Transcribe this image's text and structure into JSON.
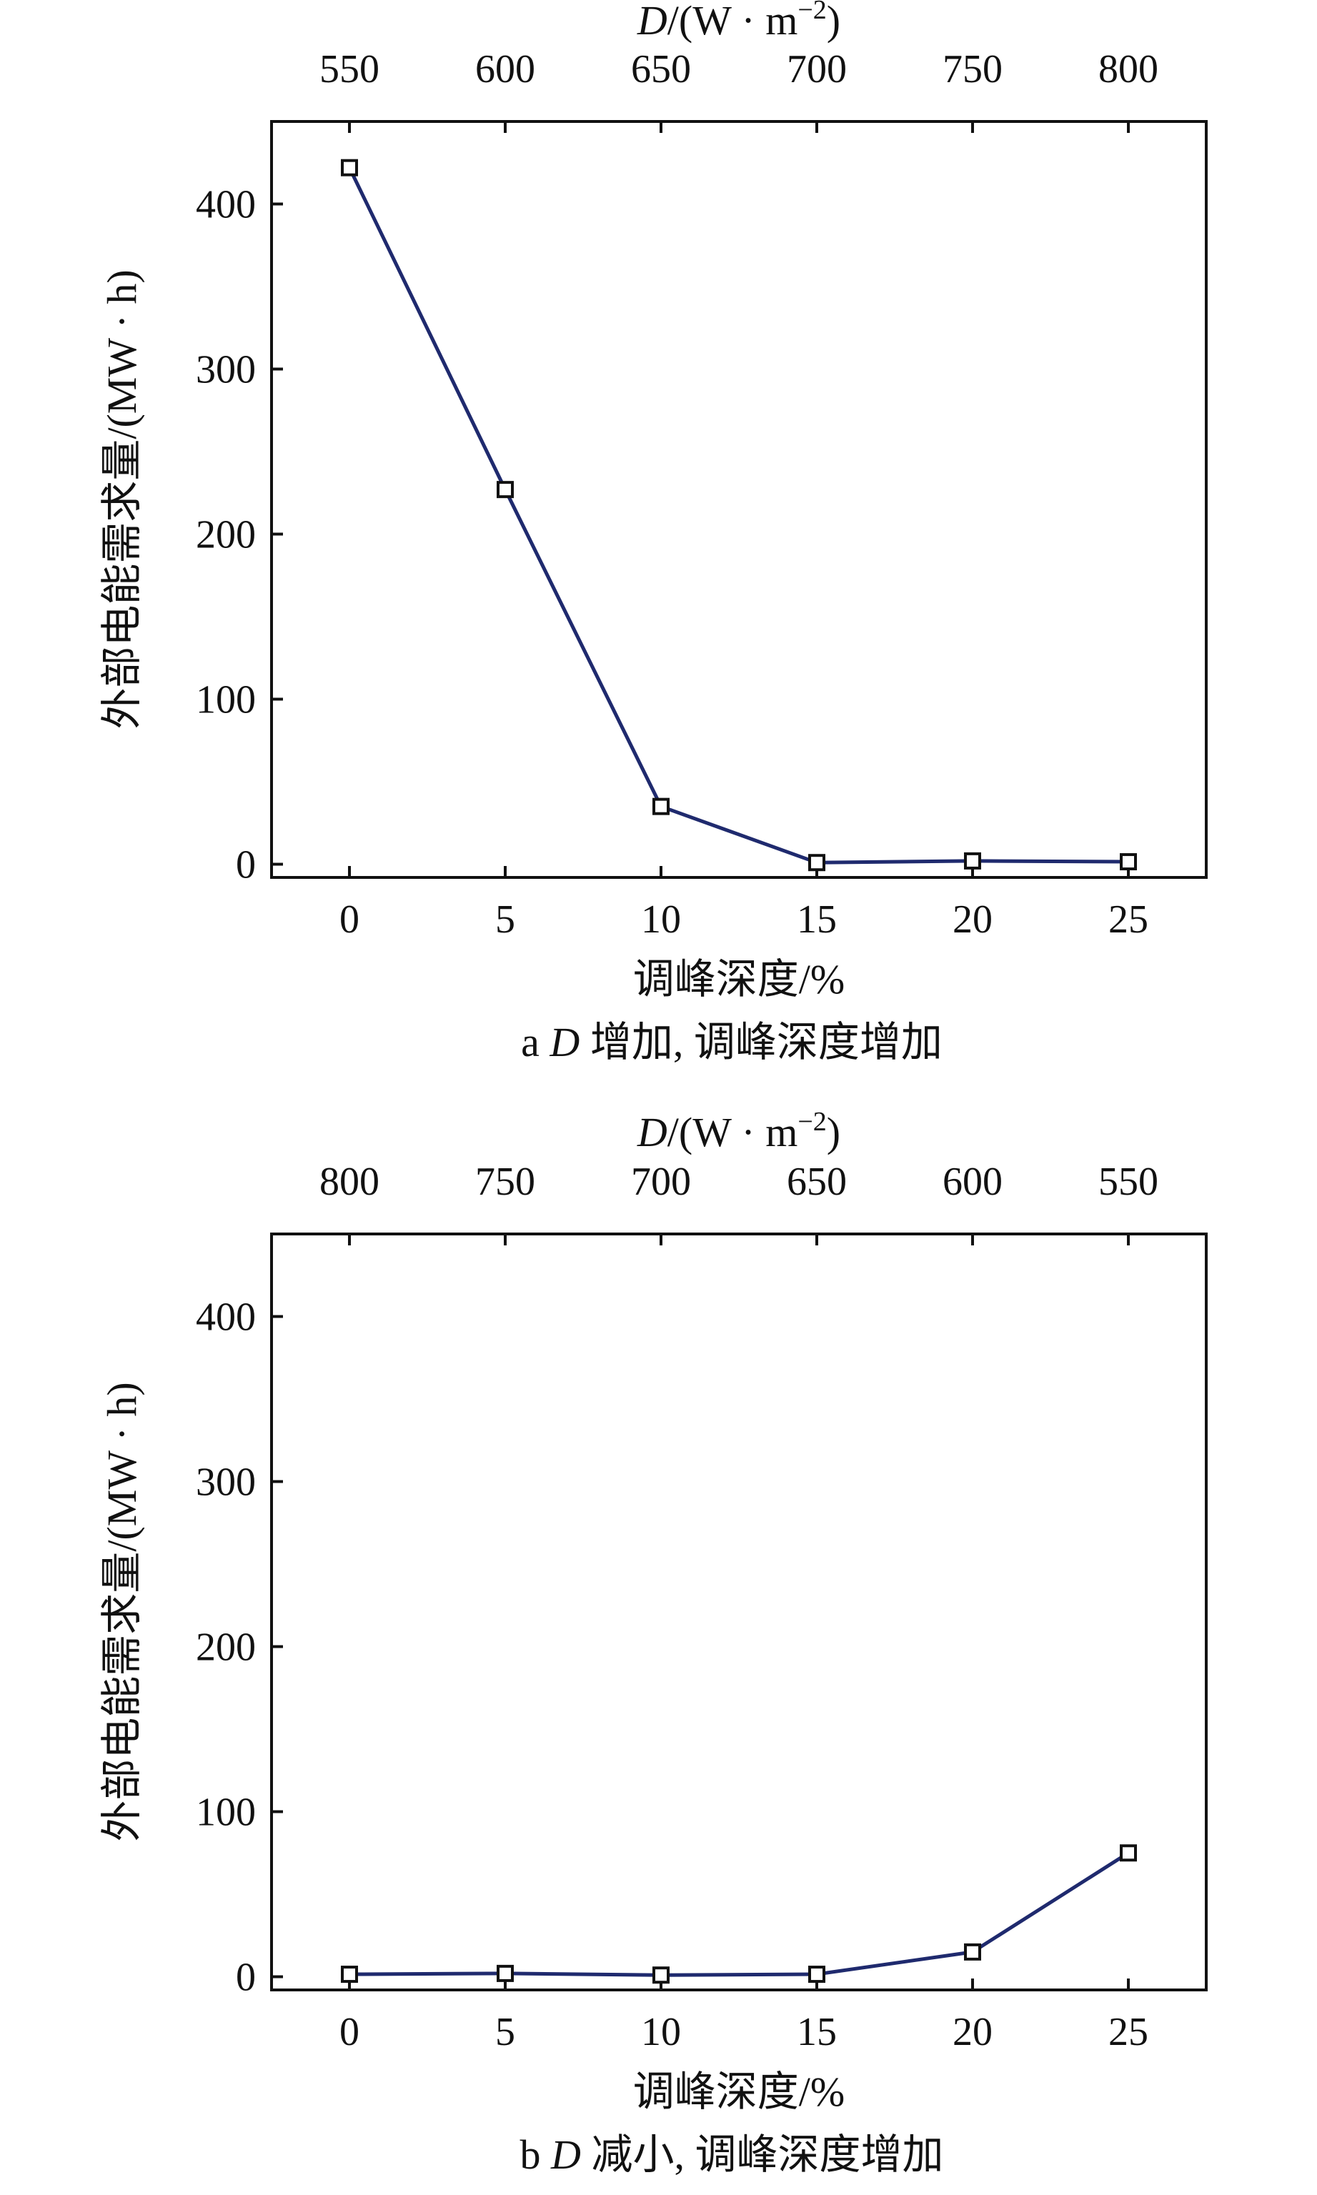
{
  "chart_data": [
    {
      "type": "line",
      "panel": "a",
      "caption_letter": "a",
      "caption_var": "D",
      "caption_text": " 增加, 调峰深度增加",
      "xlabel": "调峰深度/%",
      "x2label_var": "D",
      "x2label_unit": "/(W · m",
      "x2label_sup": "−2",
      "x2label_end": ")",
      "ylabel": "外部电能需求量/(MW · h)",
      "x": [
        0,
        5,
        10,
        15,
        20,
        25
      ],
      "xticks": [
        "0",
        "5",
        "10",
        "15",
        "20",
        "25"
      ],
      "x2ticks": [
        "550",
        "600",
        "650",
        "700",
        "750",
        "800"
      ],
      "yticks": [
        "0",
        "100",
        "200",
        "300",
        "400"
      ],
      "ylim": [
        -8,
        450
      ],
      "xlim": [
        -2.5,
        27.5
      ],
      "series": [
        {
          "values": [
            422,
            227,
            35,
            1,
            2,
            1.5
          ]
        }
      ],
      "line_color": "#1f2a6e",
      "grid": false
    },
    {
      "type": "line",
      "panel": "b",
      "caption_letter": "b",
      "caption_var": "D",
      "caption_text": " 减小, 调峰深度增加",
      "xlabel": "调峰深度/%",
      "x2label_var": "D",
      "x2label_unit": "/(W · m",
      "x2label_sup": "−2",
      "x2label_end": ")",
      "ylabel": "外部电能需求量/(MW · h)",
      "x": [
        0,
        5,
        10,
        15,
        20,
        25
      ],
      "xticks": [
        "0",
        "5",
        "10",
        "15",
        "20",
        "25"
      ],
      "x2ticks": [
        "800",
        "750",
        "700",
        "650",
        "600",
        "550"
      ],
      "yticks": [
        "0",
        "100",
        "200",
        "300",
        "400"
      ],
      "ylim": [
        -8,
        450
      ],
      "xlim": [
        -2.5,
        27.5
      ],
      "series": [
        {
          "values": [
            1.5,
            2,
            1,
            1.5,
            15,
            75
          ]
        }
      ],
      "line_color": "#1f2a6e",
      "grid": false
    }
  ]
}
